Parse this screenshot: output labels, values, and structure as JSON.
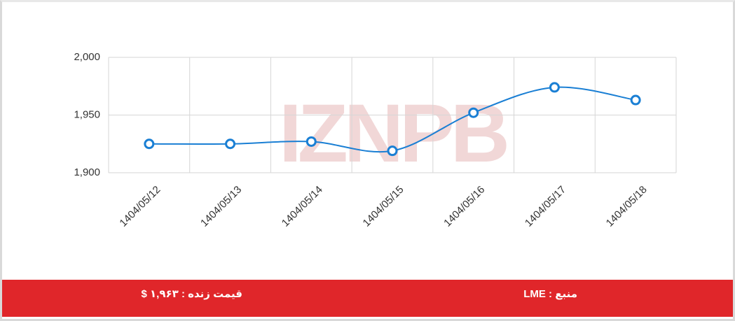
{
  "chart_data": {
    "type": "line",
    "watermark": "IZNPB",
    "categories": [
      "1404/05/12",
      "1404/05/13",
      "1404/05/14",
      "1404/05/15",
      "1404/05/16",
      "1404/05/17",
      "1404/05/18"
    ],
    "series": [
      {
        "color": "#1a7fd4",
        "values": [
          1925,
          1925,
          1927,
          1919,
          1952,
          1974,
          1963
        ]
      }
    ],
    "ylim": [
      1900,
      2000
    ],
    "yticks": [
      {
        "value": 1900,
        "label": "1,900"
      },
      {
        "value": 1950,
        "label": "1,950"
      },
      {
        "value": 2000,
        "label": "2,000"
      }
    ],
    "grid": true
  },
  "footer": {
    "live_price": "قیمت زنده : ۱,۹۶۳ $",
    "source": "منبع : LME"
  }
}
